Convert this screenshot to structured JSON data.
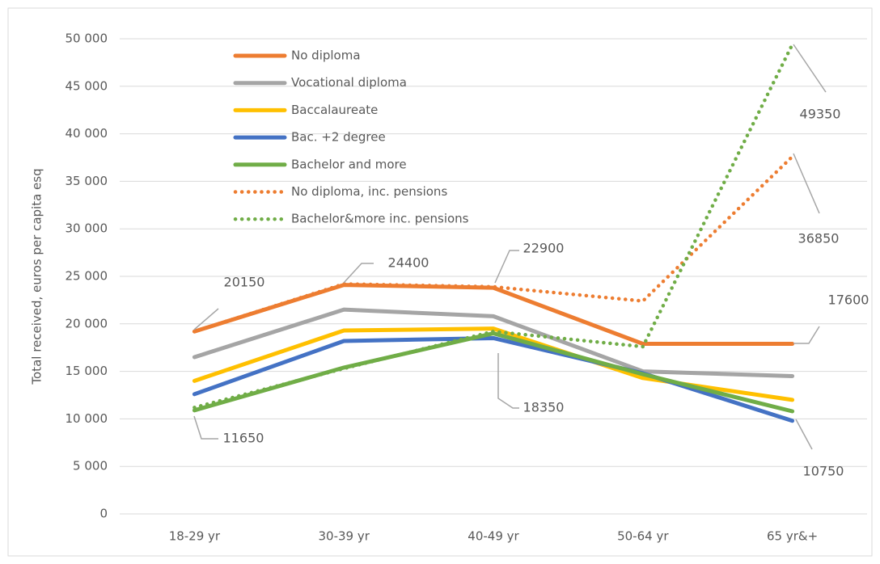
{
  "chart_data": {
    "type": "line",
    "y_label": "Total received, euros per capita esq",
    "categories": [
      "18-29 yr",
      "30-39 yr",
      "40-49 yr",
      "50-64 yr",
      "65 yr&+"
    ],
    "ylim": [
      0,
      50000
    ],
    "yticks": [
      {
        "value": 0,
        "label": "0"
      },
      {
        "value": 5000,
        "label": "5 000"
      },
      {
        "value": 10000,
        "label": "10 000"
      },
      {
        "value": 15000,
        "label": "15 000"
      },
      {
        "value": 20000,
        "label": "20 000"
      },
      {
        "value": 25000,
        "label": "25 000"
      },
      {
        "value": 30000,
        "label": "30 000"
      },
      {
        "value": 35000,
        "label": "35 000"
      },
      {
        "value": 40000,
        "label": "40 000"
      },
      {
        "value": 45000,
        "label": "45 000"
      },
      {
        "value": 50000,
        "label": "50 000"
      }
    ],
    "grid": true,
    "legend": "top-left",
    "series": [
      {
        "name": "No diploma",
        "color": "#ed7d31",
        "style": "solid",
        "values": [
          19200,
          24100,
          23800,
          17900,
          17900
        ]
      },
      {
        "name": "Vocational diploma",
        "color": "#a5a5a5",
        "style": "solid",
        "values": [
          16500,
          21500,
          20800,
          15000,
          14500
        ]
      },
      {
        "name": "Baccalaureate",
        "color": "#ffc000",
        "style": "solid",
        "values": [
          14000,
          19300,
          19500,
          14300,
          12000
        ]
      },
      {
        "name": "Bac. +2 degree",
        "color": "#4472c4",
        "style": "solid",
        "values": [
          12600,
          18200,
          18500,
          14800,
          9800
        ]
      },
      {
        "name": "Bachelor and more",
        "color": "#70ad47",
        "style": "solid",
        "values": [
          10900,
          15400,
          19000,
          14700,
          10800
        ]
      },
      {
        "name": "No diploma, inc. pensions",
        "color": "#ed7d31",
        "style": "dotted",
        "values": [
          19200,
          24200,
          23900,
          22400,
          37600
        ]
      },
      {
        "name": "Bachelor&more inc. pensions",
        "color": "#70ad47",
        "style": "dotted",
        "values": [
          11200,
          15300,
          19200,
          17600,
          49400
        ]
      }
    ],
    "annotations": [
      "20150",
      "24400",
      "22900",
      "18350",
      "11650",
      "17600",
      "10750",
      "36850",
      "49350"
    ]
  }
}
